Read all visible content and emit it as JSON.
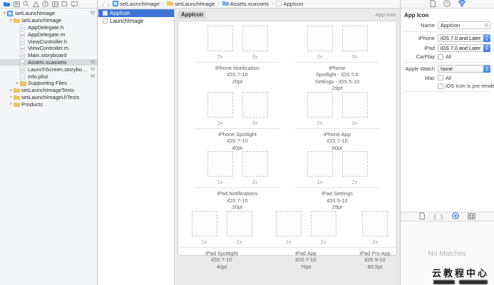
{
  "navigator": {
    "toolbar_icons": [
      "project-navigator-icon",
      "symbol-navigator-icon",
      "find-navigator-icon",
      "issue-navigator-icon",
      "test-navigator-icon",
      "debug-navigator-icon",
      "breakpoint-navigator-icon",
      "report-navigator-icon"
    ],
    "items": [
      {
        "label": "setLaunchImage",
        "icon": "project",
        "indent": 0,
        "disclosure": "open",
        "badge": "M",
        "selected": false
      },
      {
        "label": "setLaunchImage",
        "icon": "folder",
        "indent": 1,
        "disclosure": "open",
        "badge": "",
        "selected": false
      },
      {
        "label": "AppDelegate.h",
        "icon": "file-h",
        "indent": 2,
        "disclosure": "",
        "badge": "",
        "selected": false
      },
      {
        "label": "AppDelegate.m",
        "icon": "file-m",
        "indent": 2,
        "disclosure": "",
        "badge": "",
        "selected": false
      },
      {
        "label": "ViewController.h",
        "icon": "file-h",
        "indent": 2,
        "disclosure": "",
        "badge": "",
        "selected": false
      },
      {
        "label": "ViewController.m",
        "icon": "file-m",
        "indent": 2,
        "disclosure": "",
        "badge": "",
        "selected": false
      },
      {
        "label": "Main.storyboard",
        "icon": "storyboard",
        "indent": 2,
        "disclosure": "",
        "badge": "",
        "selected": false
      },
      {
        "label": "Assets.xcassets",
        "icon": "assets",
        "indent": 2,
        "disclosure": "",
        "badge": "M",
        "selected": true
      },
      {
        "label": "LaunchScreen.storyboard",
        "icon": "storyboard",
        "indent": 2,
        "disclosure": "",
        "badge": "M",
        "selected": false
      },
      {
        "label": "Info.plist",
        "icon": "plist",
        "indent": 2,
        "disclosure": "",
        "badge": "M",
        "selected": false
      },
      {
        "label": "Supporting Files",
        "icon": "folder",
        "indent": 2,
        "disclosure": "closed",
        "badge": "",
        "selected": false
      },
      {
        "label": "setLaunchImageTests",
        "icon": "folder",
        "indent": 1,
        "disclosure": "closed",
        "badge": "",
        "selected": false
      },
      {
        "label": "setLaunchImageUITests",
        "icon": "folder",
        "indent": 1,
        "disclosure": "closed",
        "badge": "",
        "selected": false
      },
      {
        "label": "Products",
        "icon": "folder",
        "indent": 1,
        "disclosure": "closed",
        "badge": "",
        "selected": false
      }
    ]
  },
  "jumpbar": {
    "back": "‹",
    "forward": "›",
    "separator": "›",
    "segments": [
      {
        "icon": "project",
        "label": "setLaunchImage"
      },
      {
        "icon": "folder",
        "label": "setLaunchImage"
      },
      {
        "icon": "assets-folder",
        "label": "Assets.xcassets"
      },
      {
        "icon": "appicon-set",
        "label": "AppIcon"
      }
    ]
  },
  "asset_list": {
    "items": [
      {
        "label": "AppIcon",
        "selected": true
      },
      {
        "label": "LaunchImage",
        "selected": false
      }
    ]
  },
  "editor": {
    "header_chip": "AppIcon",
    "header_right": "App icon",
    "groups": [
      {
        "scales": [
          "2x",
          "3x"
        ],
        "caption": [
          "iPhone Notification",
          "iOS 7-10",
          "20pt"
        ]
      },
      {
        "scales": [
          "2x",
          "3x"
        ],
        "caption": [
          "iPhone",
          "Spotlight - iOS 5,6",
          "Settings - iOS 5-10",
          "29pt"
        ]
      },
      {
        "scales": [
          "2x",
          "3x"
        ],
        "caption": [
          "iPhone Spotlight",
          "iOS 7-10",
          "40pt"
        ]
      },
      {
        "scales": [
          "2x",
          "3x"
        ],
        "caption": [
          "iPhone App",
          "iOS 7-10",
          "60pt"
        ]
      },
      {
        "scales": [
          "1x",
          "2x"
        ],
        "caption": [
          "iPad Notifications",
          "iOS 7-10",
          "20pt"
        ]
      },
      {
        "scales": [
          "1x",
          "2x"
        ],
        "caption": [
          "iPad Settings",
          "iOS 5-10",
          "29pt"
        ]
      },
      {
        "scales": [
          "1x",
          "2x"
        ],
        "caption": [
          "iPad Spotlight",
          "iOS 7-10",
          "40pt"
        ]
      },
      {
        "scales": [
          "1x",
          "2x"
        ],
        "caption": [
          "iPad App",
          "iOS 7-10",
          "76pt"
        ]
      },
      {
        "scales": [
          "2x"
        ],
        "caption": [
          "iPad Pro App",
          "iOS 9-10",
          "83.5pt"
        ]
      }
    ],
    "rows": [
      [
        0,
        1
      ],
      [
        2,
        3
      ],
      [
        4,
        5
      ],
      [
        6,
        7,
        8
      ]
    ]
  },
  "inspector": {
    "tabs": [
      "file-inspector-icon",
      "quick-help-inspector-icon",
      "attributes-inspector-icon"
    ],
    "header": "App Icon",
    "name_label": "Name",
    "name_value": "AppIcon",
    "rows": [
      {
        "label": "iPhone",
        "type": "popup",
        "value": "iOS 7.0 and Later"
      },
      {
        "label": "iPad",
        "type": "popup",
        "value": "iOS 7.0 and Later"
      },
      {
        "label": "CarPlay",
        "type": "checkbox",
        "value": "All"
      },
      {
        "label": "Apple Watch",
        "type": "popup",
        "value": "None"
      },
      {
        "label": "Mac",
        "type": "checkbox",
        "value": "All"
      },
      {
        "label": "",
        "type": "checkbox",
        "value": "iOS icon is pre-rendered"
      }
    ],
    "library_icons": [
      "file-template-library-icon",
      "code-snippet-library-icon",
      "object-library-icon",
      "media-library-icon"
    ],
    "library_empty": "No Matches"
  },
  "watermark": {
    "title": "云教程中心"
  },
  "colors": {
    "accent_blue": "#3c74d6",
    "popup_cap_blue": "#3a7de9",
    "folder_yellow": "#edc45c",
    "selection_gray": "#d7dade"
  }
}
